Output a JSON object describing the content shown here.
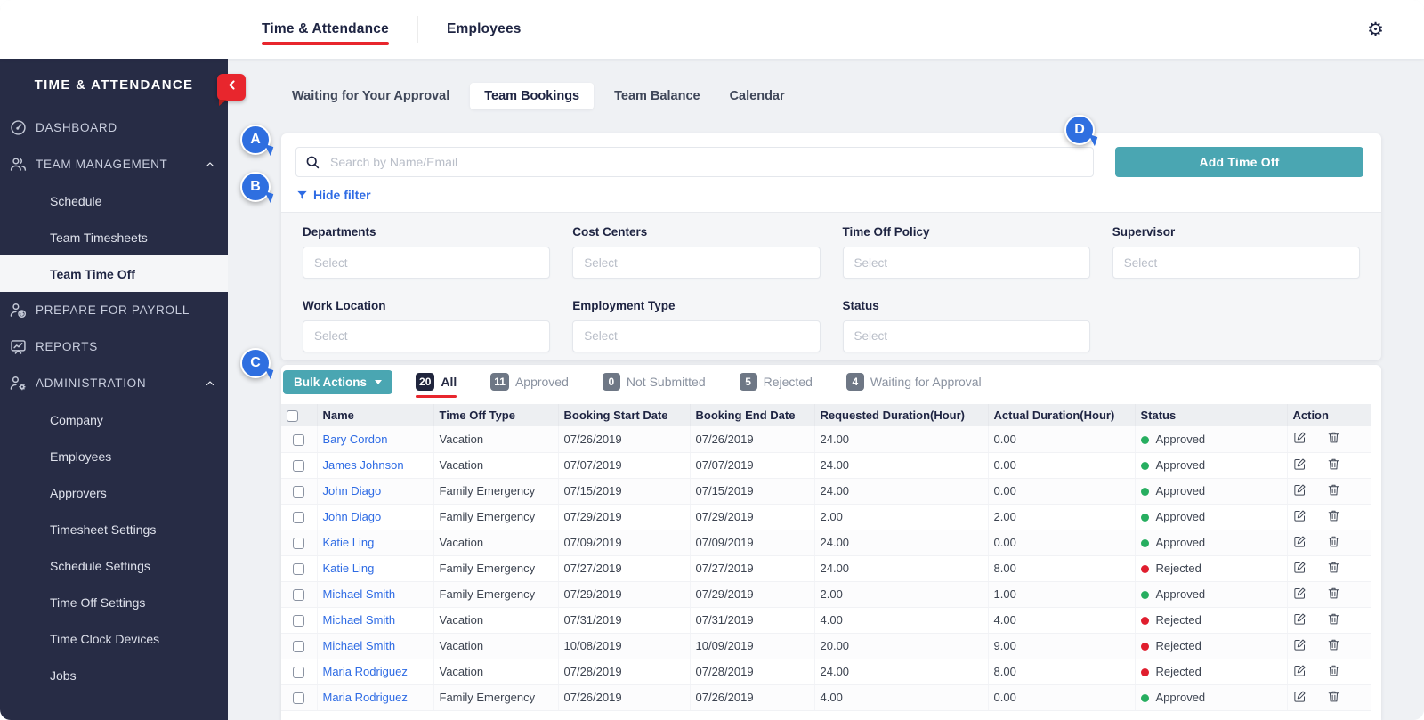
{
  "topbar": {
    "nav": [
      {
        "label": "Time & Attendance",
        "active": true
      },
      {
        "label": "Employees",
        "active": false
      }
    ]
  },
  "sidebar": {
    "title": "TIME & ATTENDANCE",
    "items": [
      {
        "kind": "top",
        "icon": "dashboard-icon",
        "label": "DASHBOARD"
      },
      {
        "kind": "top",
        "icon": "team-management-icon",
        "label": "TEAM MANAGEMENT",
        "expanded": true
      },
      {
        "kind": "sub",
        "label": "Schedule"
      },
      {
        "kind": "sub",
        "label": "Team Timesheets"
      },
      {
        "kind": "sub",
        "label": "Team Time Off",
        "active": true
      },
      {
        "kind": "top",
        "icon": "payroll-icon",
        "label": "PREPARE FOR PAYROLL"
      },
      {
        "kind": "top",
        "icon": "reports-icon",
        "label": "REPORTS"
      },
      {
        "kind": "top",
        "icon": "administration-icon",
        "label": "ADMINISTRATION",
        "expanded": true
      },
      {
        "kind": "sub",
        "label": "Company"
      },
      {
        "kind": "sub",
        "label": "Employees"
      },
      {
        "kind": "sub",
        "label": "Approvers"
      },
      {
        "kind": "sub",
        "label": "Timesheet Settings"
      },
      {
        "kind": "sub",
        "label": "Schedule Settings"
      },
      {
        "kind": "sub",
        "label": "Time Off Settings"
      },
      {
        "kind": "sub",
        "label": "Time Clock Devices"
      },
      {
        "kind": "sub",
        "label": "Jobs"
      }
    ]
  },
  "page_tabs": [
    {
      "label": "Waiting for Your Approval",
      "active": false
    },
    {
      "label": "Team Bookings",
      "active": true
    },
    {
      "label": "Team Balance",
      "active": false
    },
    {
      "label": "Calendar",
      "active": false
    }
  ],
  "search": {
    "placeholder": "Search by Name/Email"
  },
  "add_time_off_label": "Add Time Off",
  "filter": {
    "toggle_label": "Hide filter",
    "fields": [
      {
        "label": "Departments",
        "placeholder": "Select"
      },
      {
        "label": "Cost Centers",
        "placeholder": "Select"
      },
      {
        "label": "Time Off Policy",
        "placeholder": "Select"
      },
      {
        "label": "Supervisor",
        "placeholder": "Select"
      },
      {
        "label": "Work Location",
        "placeholder": "Select"
      },
      {
        "label": "Employment Type",
        "placeholder": "Select"
      },
      {
        "label": "Status",
        "placeholder": "Select"
      }
    ]
  },
  "bulk_actions_label": "Bulk Actions",
  "status_tabs": [
    {
      "count": "20",
      "label": "All",
      "active": true
    },
    {
      "count": "11",
      "label": "Approved",
      "active": false
    },
    {
      "count": "0",
      "label": "Not Submitted",
      "active": false
    },
    {
      "count": "5",
      "label": "Rejected",
      "active": false
    },
    {
      "count": "4",
      "label": "Waiting for Approval",
      "active": false
    }
  ],
  "table": {
    "columns": [
      "Name",
      "Time Off Type",
      "Booking Start Date",
      "Booking End Date",
      "Requested Duration(Hour)",
      "Actual Duration(Hour)",
      "Status",
      "Action"
    ],
    "rows": [
      {
        "name": "Bary Cordon",
        "time_off_type": "Vacation",
        "booking_start_date": "07/26/2019",
        "booking_end_date": "07/26/2019",
        "requested_duration": "24.00",
        "actual_duration": "0.00",
        "status": "Approved"
      },
      {
        "name": "James Johnson",
        "time_off_type": "Vacation",
        "booking_start_date": "07/07/2019",
        "booking_end_date": "07/07/2019",
        "requested_duration": "24.00",
        "actual_duration": "0.00",
        "status": "Approved"
      },
      {
        "name": "John Diago",
        "time_off_type": "Family Emergency",
        "booking_start_date": "07/15/2019",
        "booking_end_date": "07/15/2019",
        "requested_duration": "24.00",
        "actual_duration": "0.00",
        "status": "Approved"
      },
      {
        "name": "John Diago",
        "time_off_type": "Family Emergency",
        "booking_start_date": "07/29/2019",
        "booking_end_date": "07/29/2019",
        "requested_duration": "2.00",
        "actual_duration": "2.00",
        "status": "Approved"
      },
      {
        "name": "Katie Ling",
        "time_off_type": "Vacation",
        "booking_start_date": "07/09/2019",
        "booking_end_date": "07/09/2019",
        "requested_duration": "24.00",
        "actual_duration": "0.00",
        "status": "Approved"
      },
      {
        "name": "Katie Ling",
        "time_off_type": "Family Emergency",
        "booking_start_date": "07/27/2019",
        "booking_end_date": "07/27/2019",
        "requested_duration": "24.00",
        "actual_duration": "8.00",
        "status": "Rejected"
      },
      {
        "name": "Michael Smith",
        "time_off_type": "Family Emergency",
        "booking_start_date": "07/29/2019",
        "booking_end_date": "07/29/2019",
        "requested_duration": "2.00",
        "actual_duration": "1.00",
        "status": "Approved"
      },
      {
        "name": "Michael Smith",
        "time_off_type": "Vacation",
        "booking_start_date": "07/31/2019",
        "booking_end_date": "07/31/2019",
        "requested_duration": "4.00",
        "actual_duration": "4.00",
        "status": "Rejected"
      },
      {
        "name": "Michael Smith",
        "time_off_type": "Vacation",
        "booking_start_date": "10/08/2019",
        "booking_end_date": "10/09/2019",
        "requested_duration": "20.00",
        "actual_duration": "9.00",
        "status": "Rejected"
      },
      {
        "name": "Maria Rodriguez",
        "time_off_type": "Vacation",
        "booking_start_date": "07/28/2019",
        "booking_end_date": "07/28/2019",
        "requested_duration": "24.00",
        "actual_duration": "8.00",
        "status": "Rejected"
      },
      {
        "name": "Maria Rodriguez",
        "time_off_type": "Family Emergency",
        "booking_start_date": "07/26/2019",
        "booking_end_date": "07/26/2019",
        "requested_duration": "4.00",
        "actual_duration": "0.00",
        "status": "Approved"
      }
    ]
  },
  "callouts": [
    {
      "letter": "A"
    },
    {
      "letter": "B"
    },
    {
      "letter": "C"
    },
    {
      "letter": "D"
    }
  ],
  "colors": {
    "accent_teal": "#4aa6b2",
    "accent_red": "#e8262d",
    "link_blue": "#2e6be4",
    "callout_blue": "#2f6fe0",
    "approved_green": "#27ae60",
    "rejected_red": "#e01e2e",
    "sidebar_navy": "#272c45"
  }
}
